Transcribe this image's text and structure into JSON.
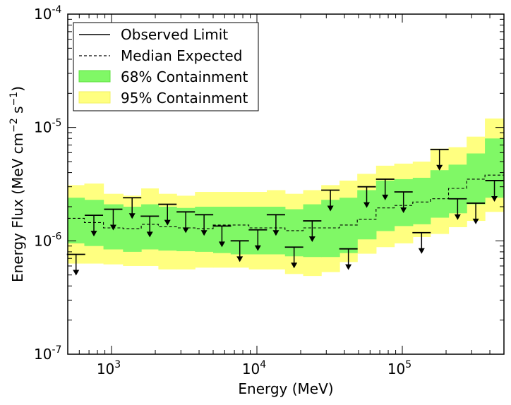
{
  "chart_data": {
    "type": "line",
    "xlabel": "Energy (MeV)",
    "ylabel": "Energy Flux (MeV cm",
    "ylabel_sup1": "−2",
    "ylabel_mid": " s",
    "ylabel_sup2": "−1",
    "ylabel_end": ")",
    "xlim": [
      500,
      500000
    ],
    "ylim": [
      1e-07,
      0.0001
    ],
    "xscale": "log",
    "yscale": "log",
    "grid": false,
    "legend_position": "top-left",
    "colors": {
      "band68": "#80f866",
      "band95": "#ffff80",
      "limit": "#000000",
      "median": "#000000"
    },
    "x_ticks": [
      {
        "value": 1000,
        "base": "10",
        "exp": "3"
      },
      {
        "value": 10000,
        "base": "10",
        "exp": "4"
      },
      {
        "value": 100000,
        "base": "10",
        "exp": "5"
      }
    ],
    "y_ticks": [
      {
        "value": 1e-07,
        "base": "10",
        "exp": "-7"
      },
      {
        "value": 1e-06,
        "base": "10",
        "exp": "-6"
      },
      {
        "value": 1e-05,
        "base": "10",
        "exp": "-5"
      },
      {
        "value": 0.0001,
        "base": "10",
        "exp": "-4"
      }
    ],
    "legend": [
      {
        "label": "Observed Limit",
        "style": "solid"
      },
      {
        "label": "Median Expected",
        "style": "dashed"
      },
      {
        "label": "68% Containment",
        "style": "band68"
      },
      {
        "label": "95% Containment",
        "style": "band95"
      }
    ],
    "bins": [
      {
        "x_lo": 500,
        "x_hi": 650,
        "limit": 7.6e-07,
        "median": 1.58e-06,
        "lo68": 9.5e-07,
        "hi68": 2.4e-06,
        "lo95": 6.3e-07,
        "hi95": 3.1e-06
      },
      {
        "x_lo": 650,
        "x_hi": 880,
        "limit": 1.68e-06,
        "median": 1.45e-06,
        "lo68": 9e-07,
        "hi68": 2.3e-06,
        "lo95": 6.3e-07,
        "hi95": 3.2e-06
      },
      {
        "x_lo": 880,
        "x_hi": 1200,
        "limit": 1.9e-06,
        "median": 1.3e-06,
        "lo68": 8.4e-07,
        "hi68": 2.1e-06,
        "lo95": 6.2e-07,
        "hi95": 2.6e-06
      },
      {
        "x_lo": 1200,
        "x_hi": 1600,
        "limit": 2.4e-06,
        "median": 1.28e-06,
        "lo68": 8e-07,
        "hi68": 2e-06,
        "lo95": 6e-07,
        "hi95": 2.5e-06
      },
      {
        "x_lo": 1600,
        "x_hi": 2100,
        "limit": 1.65e-06,
        "median": 1.4e-06,
        "lo68": 8.4e-07,
        "hi68": 2.1e-06,
        "lo95": 6e-07,
        "hi95": 2.9e-06
      },
      {
        "x_lo": 2100,
        "x_hi": 2800,
        "limit": 2.1e-06,
        "median": 1.33e-06,
        "lo68": 8.2e-07,
        "hi68": 2e-06,
        "lo95": 5.6e-07,
        "hi95": 2.6e-06
      },
      {
        "x_lo": 2800,
        "x_hi": 3750,
        "limit": 1.8e-06,
        "median": 1.3e-06,
        "lo68": 8.1e-07,
        "hi68": 1.95e-06,
        "lo95": 5.6e-07,
        "hi95": 2.5e-06
      },
      {
        "x_lo": 3750,
        "x_hi": 5000,
        "limit": 1.7e-06,
        "median": 1.28e-06,
        "lo68": 8e-07,
        "hi68": 2e-06,
        "lo95": 5.8e-07,
        "hi95": 2.7e-06
      },
      {
        "x_lo": 5000,
        "x_hi": 6600,
        "limit": 1.35e-06,
        "median": 1.38e-06,
        "lo68": 7.8e-07,
        "hi68": 2e-06,
        "lo95": 5.8e-07,
        "hi95": 2.7e-06
      },
      {
        "x_lo": 6600,
        "x_hi": 8800,
        "limit": 1e-06,
        "median": 1.38e-06,
        "lo68": 7.6e-07,
        "hi68": 2e-06,
        "lo95": 5.8e-07,
        "hi95": 2.7e-06
      },
      {
        "x_lo": 8800,
        "x_hi": 11700,
        "limit": 1.25e-06,
        "median": 1.3e-06,
        "lo68": 7.6e-07,
        "hi68": 2e-06,
        "lo95": 5.6e-07,
        "hi95": 2.7e-06
      },
      {
        "x_lo": 11700,
        "x_hi": 15600,
        "limit": 1.7e-06,
        "median": 1.3e-06,
        "lo68": 7.6e-07,
        "hi68": 2e-06,
        "lo95": 5.6e-07,
        "hi95": 2.8e-06
      },
      {
        "x_lo": 15600,
        "x_hi": 20800,
        "limit": 8.8e-07,
        "median": 1.23e-06,
        "lo68": 7.3e-07,
        "hi68": 1.9e-06,
        "lo95": 5.1e-07,
        "hi95": 2.6e-06
      },
      {
        "x_lo": 20800,
        "x_hi": 27700,
        "limit": 1.5e-06,
        "median": 1.3e-06,
        "lo68": 7.2e-07,
        "hi68": 2.1e-06,
        "lo95": 4.9e-07,
        "hi95": 2.8e-06
      },
      {
        "x_lo": 27700,
        "x_hi": 37000,
        "limit": 2.8e-06,
        "median": 1.3e-06,
        "lo68": 7.2e-07,
        "hi68": 2.3e-06,
        "lo95": 5.3e-07,
        "hi95": 3.1e-06
      },
      {
        "x_lo": 37000,
        "x_hi": 49000,
        "limit": 8.5e-07,
        "median": 1.38e-06,
        "lo68": 7.8e-07,
        "hi68": 2.4e-06,
        "lo95": 6.5e-07,
        "hi95": 3.4e-06
      },
      {
        "x_lo": 49000,
        "x_hi": 66000,
        "limit": 3e-06,
        "median": 1.55e-06,
        "lo68": 1.03e-06,
        "hi68": 2.8e-06,
        "lo95": 7.7e-07,
        "hi95": 3.9e-06
      },
      {
        "x_lo": 66000,
        "x_hi": 88000,
        "limit": 3.5e-06,
        "median": 1.95e-06,
        "lo68": 1.22e-06,
        "hi68": 3.4e-06,
        "lo95": 8.8e-07,
        "hi95": 4.6e-06
      },
      {
        "x_lo": 88000,
        "x_hi": 118000,
        "limit": 2.7e-06,
        "median": 2.05e-06,
        "lo68": 1.35e-06,
        "hi68": 3.5e-06,
        "lo95": 9.5e-07,
        "hi95": 4.8e-06
      },
      {
        "x_lo": 118000,
        "x_hi": 156000,
        "limit": 1.18e-06,
        "median": 2.2e-06,
        "lo68": 1.4e-06,
        "hi68": 3.6e-06,
        "lo95": 1.08e-06,
        "hi95": 5e-06
      },
      {
        "x_lo": 156000,
        "x_hi": 208000,
        "limit": 6.4e-06,
        "median": 2.35e-06,
        "lo68": 1.6e-06,
        "hi68": 4.2e-06,
        "lo95": 1.15e-06,
        "hi95": 6.5e-06
      },
      {
        "x_lo": 208000,
        "x_hi": 277000,
        "limit": 2.35e-06,
        "median": 2.9e-06,
        "lo68": 1.75e-06,
        "hi68": 4.7e-06,
        "lo95": 1.32e-06,
        "hi95": 6.7e-06
      },
      {
        "x_lo": 277000,
        "x_hi": 370000,
        "limit": 2.15e-06,
        "median": 3.5e-06,
        "lo68": 2.1e-06,
        "hi68": 5.9e-06,
        "lo95": 1.5e-06,
        "hi95": 8.3e-06
      },
      {
        "x_lo": 370000,
        "x_hi": 500000,
        "limit": 3.4e-06,
        "median": 3.8e-06,
        "lo68": 2.4e-06,
        "hi68": 8e-06,
        "lo95": 1.8e-06,
        "hi95": 1.2e-05
      }
    ]
  }
}
